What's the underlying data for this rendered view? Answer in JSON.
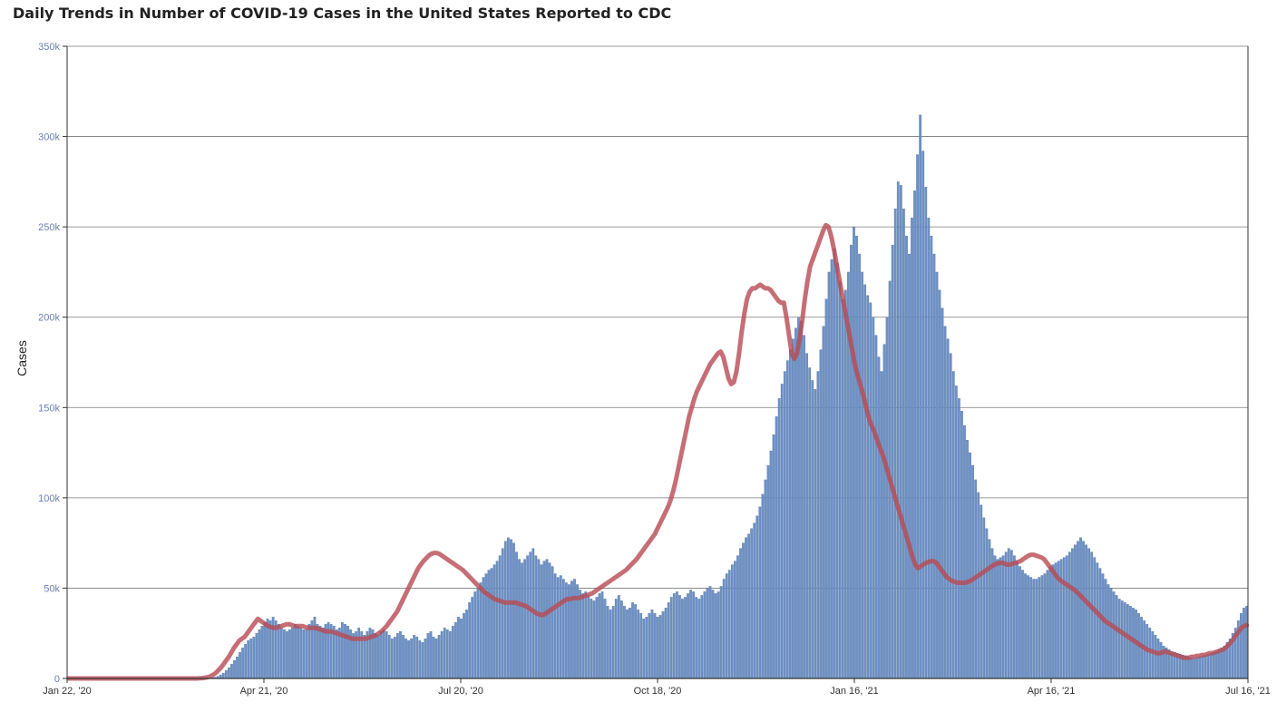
{
  "title": "Daily Trends in Number of COVID-19 Cases in the United States Reported to CDC",
  "colors": {
    "bars": "#6e91c4",
    "bar_edge": "#4f72a8",
    "average_line": "#b84a52",
    "grid": "#7a7a7a",
    "tick_y": "#6a7fb0"
  },
  "chart_data": {
    "type": "bar",
    "title": "Daily Trends in Number of COVID-19 Cases in the United States Reported to CDC",
    "xlabel": "",
    "ylabel": "Cases",
    "ylim": [
      0,
      350000
    ],
    "yticks": [
      0,
      50000,
      100000,
      150000,
      200000,
      250000,
      300000,
      350000
    ],
    "ytick_labels": [
      "0",
      "50k",
      "100k",
      "150k",
      "200k",
      "250k",
      "300k",
      "350k"
    ],
    "xticks": [
      "Jan 22, '20",
      "Apr 21, '20",
      "Jul 20, '20",
      "Oct 18, '20",
      "Jan 16, '21",
      "Apr 16, '21",
      "Jul 16, '21"
    ],
    "x_start": "2020-01-22",
    "x_end": "2021-07-16",
    "grid": true,
    "series": [
      {
        "type": "bar",
        "values": [
          0,
          0,
          0,
          0,
          0,
          0,
          0,
          0,
          0,
          0,
          0,
          0,
          0,
          0,
          0,
          0,
          0,
          0,
          0,
          0,
          0,
          0,
          0,
          0,
          0,
          0,
          0,
          0,
          0,
          0,
          0,
          0,
          0,
          0,
          0,
          0,
          0,
          0,
          0,
          0,
          0,
          0,
          0,
          0,
          0,
          0,
          0,
          0,
          0,
          0,
          100,
          200,
          400,
          700,
          1200,
          2000,
          3000,
          4500,
          6000,
          8000,
          10000,
          12000,
          14500,
          17000,
          19000,
          21000,
          22000,
          23000,
          25000,
          27000,
          29000,
          31000,
          33000,
          32000,
          34000,
          32000,
          30000,
          28000,
          27000,
          26000,
          27000,
          28000,
          30000,
          29000,
          28000,
          27000,
          27000,
          30000,
          32000,
          34000,
          30000,
          29000,
          28000,
          30000,
          31000,
          30000,
          29000,
          27000,
          28000,
          31000,
          30000,
          29000,
          27000,
          25000,
          26000,
          28000,
          26000,
          24000,
          26000,
          28000,
          27000,
          25000,
          24000,
          26000,
          27000,
          26000,
          24000,
          22000,
          23000,
          25000,
          26000,
          24000,
          22000,
          21000,
          22000,
          24000,
          23000,
          21000,
          20000,
          22000,
          25000,
          26000,
          23000,
          22000,
          24000,
          26000,
          28000,
          27000,
          26000,
          29000,
          31000,
          34000,
          33000,
          36000,
          38000,
          42000,
          45000,
          48000,
          50000,
          53000,
          56000,
          58000,
          60000,
          61000,
          63000,
          65000,
          68000,
          72000,
          76000,
          78000,
          77000,
          75000,
          70000,
          66000,
          64000,
          66000,
          68000,
          70000,
          72000,
          68000,
          66000,
          63000,
          65000,
          66000,
          64000,
          62000,
          58000,
          56000,
          57000,
          55000,
          53000,
          52000,
          54000,
          55000,
          52000,
          49000,
          47000,
          48000,
          46000,
          44000,
          43000,
          45000,
          47000,
          48000,
          44000,
          40000,
          38000,
          40000,
          44000,
          46000,
          43000,
          40000,
          38000,
          39000,
          42000,
          41000,
          38000,
          36000,
          33000,
          34000,
          36000,
          38000,
          36000,
          34000,
          35000,
          37000,
          39000,
          42000,
          45000,
          47000,
          48000,
          46000,
          44000,
          45000,
          47000,
          49000,
          48000,
          45000,
          44000,
          46000,
          48000,
          50000,
          51000,
          49000,
          47000,
          48000,
          51000,
          55000,
          58000,
          60000,
          63000,
          65000,
          68000,
          72000,
          75000,
          78000,
          80000,
          83000,
          86000,
          90000,
          95000,
          102000,
          110000,
          118000,
          126000,
          135000,
          145000,
          155000,
          163000,
          170000,
          176000,
          182000,
          188000,
          194000,
          200000,
          198000,
          190000,
          180000,
          172000,
          165000,
          160000,
          170000,
          182000,
          195000,
          210000,
          225000,
          232000,
          238000,
          230000,
          220000,
          210000,
          215000,
          225000,
          240000,
          250000,
          245000,
          235000,
          225000,
          218000,
          212000,
          208000,
          200000,
          190000,
          178000,
          170000,
          185000,
          200000,
          220000,
          240000,
          260000,
          275000,
          273000,
          260000,
          245000,
          235000,
          255000,
          270000,
          290000,
          312000,
          292000,
          272000,
          255000,
          245000,
          235000,
          225000,
          215000,
          205000,
          195000,
          188000,
          180000,
          170000,
          162000,
          155000,
          148000,
          140000,
          132000,
          125000,
          118000,
          110000,
          103000,
          96000,
          89000,
          83000,
          77000,
          72000,
          68000,
          66000,
          67000,
          68000,
          70000,
          72000,
          71000,
          68000,
          65000,
          62000,
          60000,
          58000,
          57000,
          56000,
          55000,
          55000,
          56000,
          57000,
          58000,
          60000,
          62000,
          63000,
          64000,
          65000,
          66000,
          67000,
          68000,
          70000,
          72000,
          74000,
          76000,
          78000,
          76000,
          74000,
          72000,
          70000,
          67000,
          64000,
          61000,
          58000,
          55000,
          52000,
          50000,
          48000,
          46000,
          44000,
          43000,
          42000,
          41000,
          40000,
          39000,
          38000,
          36000,
          34000,
          32000,
          30000,
          28000,
          26000,
          24000,
          22000,
          20000,
          18000,
          17000,
          16000,
          15000,
          14500,
          14000,
          13500,
          13000,
          12500,
          12000,
          11500,
          11000,
          11500,
          12000,
          12500,
          13000,
          13500,
          14000,
          14500,
          15000,
          16000,
          17000,
          18000,
          20000,
          22000,
          25000,
          28000,
          32000,
          36000,
          39000,
          40000
        ],
        "name": ""
      },
      {
        "type": "line",
        "values": [
          0,
          0,
          0,
          0,
          0,
          0,
          0,
          0,
          0,
          0,
          0,
          0,
          0,
          0,
          0,
          0,
          0,
          0,
          0,
          0,
          0,
          0,
          0,
          0,
          0,
          0,
          0,
          0,
          0,
          0,
          0,
          0,
          0,
          0,
          0,
          0,
          0,
          0,
          0,
          0,
          0,
          0,
          0,
          0,
          0,
          0,
          0,
          0,
          0,
          0,
          100,
          200,
          400,
          700,
          1200,
          2000,
          3000,
          4500,
          6000,
          8000,
          10000,
          12000,
          14500,
          17000,
          19000,
          21000,
          22000,
          23000,
          25000,
          27000,
          29000,
          31000,
          33000,
          32000,
          31000,
          30000,
          29000,
          28500,
          28000,
          28000,
          28500,
          29000,
          29500,
          30000,
          30000,
          29500,
          29000,
          29000,
          29000,
          29000,
          28500,
          28000,
          28000,
          28000,
          28000,
          27500,
          27000,
          26500,
          26000,
          26000,
          26000,
          25500,
          25000,
          24500,
          24000,
          23500,
          23000,
          22500,
          22000,
          22000,
          22000,
          22000,
          22000,
          22000,
          22500,
          23000,
          23500,
          24000,
          25000,
          26000,
          27500,
          29000,
          31000,
          33000,
          35000,
          37000,
          40000,
          43000,
          46000,
          49000,
          52000,
          55000,
          58000,
          61000,
          63000,
          65000,
          66500,
          68000,
          69000,
          69500,
          69500,
          69000,
          68000,
          67000,
          66000,
          65000,
          64000,
          63000,
          62000,
          61000,
          60000,
          58500,
          57000,
          55500,
          54000,
          52500,
          51000,
          49500,
          48000,
          47000,
          46000,
          45000,
          44000,
          43500,
          43000,
          42500,
          42000,
          42000,
          42000,
          42000,
          42000,
          41500,
          41000,
          40500,
          40000,
          39000,
          38000,
          37000,
          36000,
          35500,
          35000,
          35500,
          36500,
          37500,
          38500,
          39500,
          40500,
          41500,
          42500,
          43500,
          44000,
          44000,
          44500,
          44500,
          44500,
          45000,
          45500,
          46000,
          46500,
          47000,
          48000,
          49000,
          50000,
          51000,
          52000,
          53000,
          54000,
          55000,
          56000,
          57000,
          58000,
          59000,
          60000,
          61500,
          63000,
          64500,
          66000,
          68000,
          70000,
          72000,
          74000,
          76000,
          78000,
          80000,
          83000,
          86000,
          89000,
          92000,
          95000,
          99000,
          104000,
          110000,
          117000,
          124000,
          131000,
          138000,
          145000,
          150000,
          155000,
          159000,
          162000,
          165000,
          168000,
          171000,
          174000,
          176000,
          178000,
          180000,
          181000,
          178000,
          172000,
          166000,
          163000,
          164000,
          170000,
          180000,
          192000,
          202000,
          210000,
          214000,
          216000,
          216000,
          217000,
          218000,
          217000,
          216000,
          216000,
          215000,
          213000,
          211000,
          209000,
          208000,
          208000,
          200000,
          190000,
          180000,
          177000,
          180000,
          188000,
          198000,
          210000,
          220000,
          228000,
          232000,
          236000,
          240000,
          244000,
          248000,
          251000,
          250000,
          245000,
          238000,
          230000,
          222000,
          214000,
          206000,
          198000,
          190000,
          182000,
          174000,
          168000,
          163000,
          158000,
          152000,
          146000,
          141000,
          138000,
          134000,
          130000,
          126000,
          122000,
          117000,
          112000,
          107000,
          102000,
          97000,
          92000,
          87000,
          82000,
          77000,
          72000,
          67000,
          63000,
          61000,
          62000,
          63000,
          64000,
          64500,
          65000,
          65000,
          64000,
          62000,
          60000,
          58000,
          56000,
          55000,
          54000,
          53500,
          53000,
          53000,
          53000,
          53000,
          53500,
          54000,
          55000,
          56000,
          57000,
          58000,
          59000,
          60000,
          61000,
          62000,
          63000,
          63500,
          64000,
          64000,
          63500,
          63000,
          63000,
          63500,
          64000,
          64500,
          65000,
          66000,
          67000,
          68000,
          68500,
          68500,
          68000,
          67500,
          67000,
          66000,
          64000,
          62000,
          60000,
          58000,
          56000,
          54500,
          53500,
          52500,
          51500,
          50500,
          49500,
          48500,
          47000,
          45500,
          44000,
          42500,
          41000,
          39500,
          38000,
          36500,
          35000,
          33500,
          32000,
          31000,
          30000,
          29000,
          28000,
          27000,
          26000,
          25000,
          24000,
          23000,
          22000,
          21000,
          20000,
          19000,
          18000,
          17000,
          16000,
          15500,
          15000,
          14500,
          14000,
          14000,
          14500,
          15000,
          14500,
          14000,
          13500,
          13000,
          12500,
          12000,
          11500,
          11500,
          11500,
          12000,
          12000,
          12500,
          12500,
          13000,
          13000,
          13500,
          14000,
          14000,
          14500,
          15000,
          15500,
          16000,
          17000,
          18500,
          20000,
          22000,
          24000,
          26000,
          28000,
          29000,
          29500
        ]
      }
    ]
  }
}
